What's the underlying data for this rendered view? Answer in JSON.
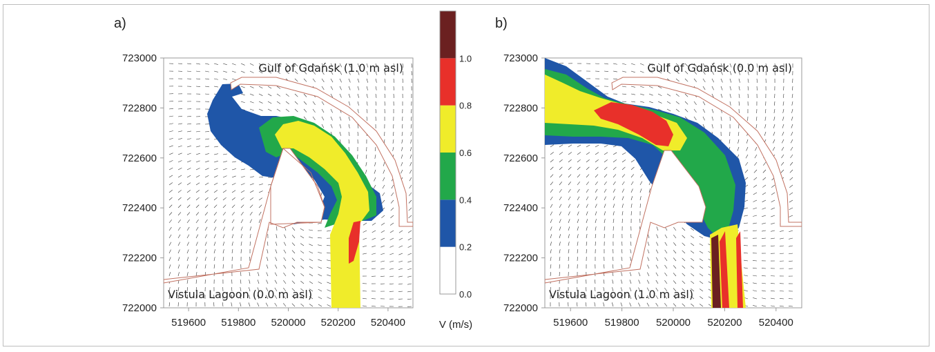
{
  "chart_data": {
    "type": "vector-field-contour",
    "panels": [
      {
        "id": "a",
        "label": "a)",
        "top_label": "Gulf of Gdańsk (1.0 m asl)",
        "bottom_label": "Vistula Lagoon (0.0 m asl)",
        "xlim": [
          519500,
          520500
        ],
        "ylim": [
          722000,
          723000
        ],
        "xticks": [
          "519600",
          "519800",
          "520000",
          "520200",
          "520400"
        ],
        "yticks": [
          "723000",
          "722800",
          "722600",
          "722400",
          "722200",
          "722000"
        ],
        "max_velocity_class": "0.8–1.0 m/s",
        "flow_direction": "Gulf → Lagoon"
      },
      {
        "id": "b",
        "label": "b)",
        "top_label": "Gulf of Gdańsk (0.0 m asl)",
        "bottom_label": "Vistula Lagoon (1.0 m asl)",
        "xlim": [
          519500,
          520500
        ],
        "ylim": [
          722000,
          723000
        ],
        "xticks": [
          "519600",
          "519800",
          "520000",
          "520200",
          "520400"
        ],
        "yticks": [
          "723000",
          "722800",
          "722600",
          "722400",
          "722200",
          "722000"
        ],
        "max_velocity_class": ">1.0 m/s",
        "flow_direction": "Lagoon → Gulf"
      }
    ],
    "colorbar": {
      "title": "V (m/s)",
      "ticks": [
        "0.0",
        "0.2",
        "0.4",
        "0.6",
        "0.8",
        "1.0"
      ],
      "classes": [
        {
          "range": [
            0.0,
            0.2
          ],
          "color": "#ffffff"
        },
        {
          "range": [
            0.2,
            0.4
          ],
          "color": "#1f56a8"
        },
        {
          "range": [
            0.4,
            0.6
          ],
          "color": "#22a84a"
        },
        {
          "range": [
            0.6,
            0.8
          ],
          "color": "#f0ec2a"
        },
        {
          "range": [
            0.8,
            1.0
          ],
          "color": "#e8302a"
        },
        {
          "range": [
            1.0,
            1.2
          ],
          "color": "#6b2020"
        }
      ]
    },
    "colors": {
      "breakwater_outline": "#c07060",
      "arrow": "#333333",
      "axis": "#999999"
    }
  }
}
